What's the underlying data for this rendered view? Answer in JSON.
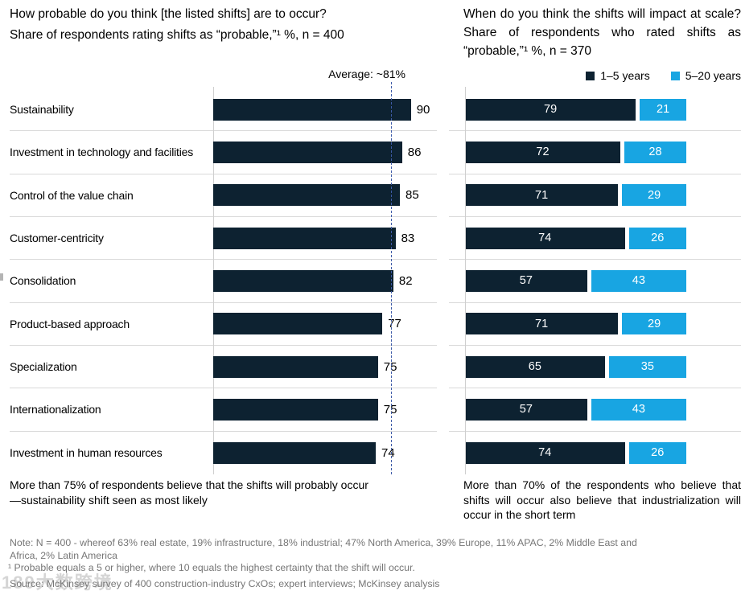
{
  "left_panel": {
    "title": "How probable do you think [the listed shifts] are to occur?",
    "subtitle": "Share of respondents rating shifts as “probable,”¹ %, n = 400",
    "average_label": "Average: ~81%",
    "takeaway": "More than 75% of respondents believe that the shifts will probably occur—sustainability shift seen as most likely"
  },
  "right_panel": {
    "title": "When do you think the shifts will impact at scale? Share of respondents who rated shifts as “probable,”¹ %, n = 370",
    "takeaway": "More than 70% of the respondents who believe that shifts will occur also believe that industrialization will occur in the short term",
    "legend": [
      {
        "label": "1–5 years",
        "color": "#0d2231"
      },
      {
        "label": "5–20 years",
        "color": "#18a5e2"
      }
    ]
  },
  "chart_data": [
    {
      "type": "bar",
      "orientation": "horizontal",
      "title": "How probable do you think [the listed shifts] are to occur?",
      "subtitle": "Share of respondents rating shifts as “probable,”¹ %, n = 400",
      "categories": [
        "Sustainability",
        "Investment in technology and facilities",
        "Control of the value chain",
        "Customer-centricity",
        "Consolidation",
        "Product-based approach",
        "Specialization",
        "Internationalization",
        "Investment in human resources"
      ],
      "values": [
        90,
        86,
        85,
        83,
        82,
        77,
        75,
        75,
        74
      ],
      "xlim": [
        0,
        100
      ],
      "average": 81,
      "average_label": "Average: ~81%",
      "bar_color": "#0d2231",
      "grid": "row-separators"
    },
    {
      "type": "bar",
      "stacked": true,
      "orientation": "horizontal",
      "title": "When do you think the shifts will impact at scale? Share of respondents who rated shifts as “probable,”¹ %, n = 370",
      "categories": [
        "Sustainability",
        "Investment in technology and facilities",
        "Control of the value chain",
        "Customer-centricity",
        "Consolidation",
        "Product-based approach",
        "Specialization",
        "Internationalization",
        "Investment in human resources"
      ],
      "series": [
        {
          "name": "1–5 years",
          "color": "#0d2231",
          "values": [
            79,
            72,
            71,
            74,
            57,
            71,
            65,
            57,
            74
          ]
        },
        {
          "name": "5–20 years",
          "color": "#18a5e2",
          "values": [
            21,
            28,
            29,
            26,
            43,
            29,
            35,
            43,
            26
          ]
        }
      ],
      "xlim": [
        0,
        100
      ],
      "legend_position": "top-right",
      "grid": "row-separators"
    }
  ],
  "footer": {
    "note": "Note: N = 400 - whereof 63% real estate, 19% infrastructure, 18% industrial; 47% North America, 39% Europe, 11% APAC, 2% Middle East and Africa, 2% Latin America",
    "footnote": "¹ Probable equals a 5 or higher, where 10 equals the highest certainty that the shift will occur.",
    "source": "Source: McKinsey survey of 400 construction-industry CxOs; expert interviews; McKinsey analysis"
  },
  "watermark": "189大数跨境",
  "colors": {
    "dark_navy": "#0d2231",
    "cyan": "#18a5e2",
    "separator": "#d9d9d9",
    "axis": "#cfcfcf",
    "average_line": "#3f5ca8",
    "note_gray": "#767676"
  }
}
